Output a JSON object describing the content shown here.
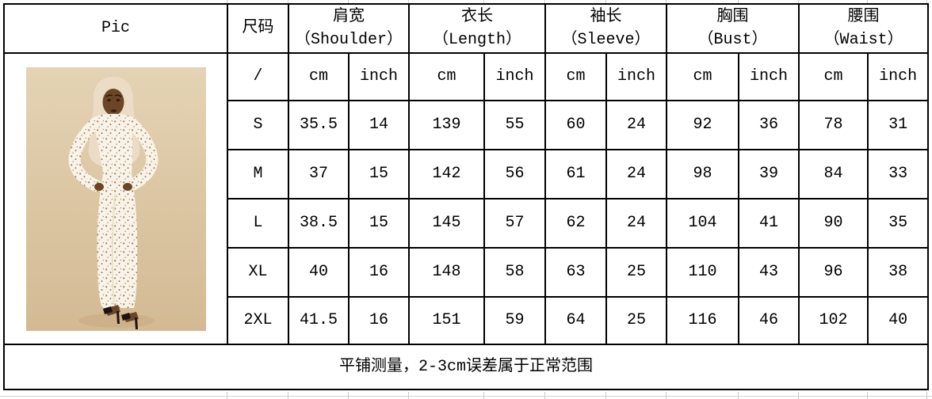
{
  "table": {
    "pic_header": "Pic",
    "size_header": "尺码",
    "measure_columns": [
      {
        "zh": "肩宽",
        "en": "（Shoulder）"
      },
      {
        "zh": "衣长",
        "en": "（Length）"
      },
      {
        "zh": "袖长",
        "en": "（Sleeve）"
      },
      {
        "zh": "胸围",
        "en": "（Bust）"
      },
      {
        "zh": "腰围",
        "en": "（Waist）"
      }
    ],
    "units": {
      "slash": "/",
      "cm": "cm",
      "inch": "inch"
    },
    "size_rows": [
      {
        "size": "S",
        "values": [
          "35.5",
          "14",
          "139",
          "55",
          "60",
          "24",
          "92",
          "36",
          "78",
          "31"
        ]
      },
      {
        "size": "M",
        "values": [
          "37",
          "15",
          "142",
          "56",
          "61",
          "24",
          "98",
          "39",
          "84",
          "33"
        ]
      },
      {
        "size": "L",
        "values": [
          "38.5",
          "15",
          "145",
          "57",
          "62",
          "24",
          "104",
          "41",
          "90",
          "35"
        ]
      },
      {
        "size": "XL",
        "values": [
          "40",
          "16",
          "148",
          "58",
          "63",
          "25",
          "110",
          "43",
          "96",
          "38"
        ]
      },
      {
        "size": "2XL",
        "values": [
          "41.5",
          "16",
          "151",
          "59",
          "64",
          "25",
          "116",
          "46",
          "102",
          "40"
        ]
      }
    ],
    "footer_note": "平铺测量，2-3cm误差属于正常范围"
  },
  "photo": {
    "description": "Model in cream hijab wearing a long-sleeve white floral maxi dress, hands on hips, beige studio background"
  },
  "colors": {
    "table_border": "#000000",
    "page_background": "#ffffff",
    "spreadsheet_gridline": "#c9c9c9",
    "photo_background": "#dcc5a0",
    "hijab": "#ecdcc6",
    "dress": "#f8f3ea",
    "dress_dot": "#a87f3f",
    "skin": "#6a4526",
    "shoes": "#1c1410"
  }
}
